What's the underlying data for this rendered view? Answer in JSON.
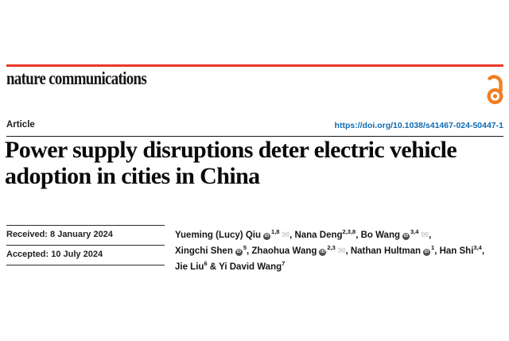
{
  "masthead": {
    "journal": "nature communications"
  },
  "icons": {
    "orcid_label": "iD",
    "email_glyph": "✉"
  },
  "colors": {
    "accent_red": "#e8392b",
    "open_access_orange": "#ef7f22",
    "link_blue": "#0f6bb2"
  },
  "article": {
    "type_label": "Article",
    "doi": "https://doi.org/10.1038/s41467-024-50447-1",
    "title": "Power supply disruptions deter electric vehicle adoption in cities in China",
    "history": [
      {
        "text": "Received: 8 January 2024"
      },
      {
        "text": "Accepted: 10 July 2024"
      }
    ],
    "authors": [
      {
        "name": "Yueming (Lucy) Qiu",
        "orcid": true,
        "sup": "1,8",
        "mail": true,
        "sep": ", "
      },
      {
        "name": "Nana Deng",
        "orcid": false,
        "sup": "2,3,8",
        "mail": false,
        "sep": ", "
      },
      {
        "name": "Bo Wang",
        "orcid": true,
        "sup": "3,4",
        "mail": true,
        "sep": ", "
      },
      {
        "name": "Xingchi Shen",
        "orcid": true,
        "sup": "5",
        "mail": false,
        "sep": ", "
      },
      {
        "name": "Zhaohua Wang",
        "orcid": true,
        "sup": "2,3",
        "mail": true,
        "sep": ", "
      },
      {
        "name": "Nathan Hultman",
        "orcid": true,
        "sup": "1",
        "mail": false,
        "sep": ", "
      },
      {
        "name": "Han Shi",
        "orcid": false,
        "sup": "3,4",
        "mail": false,
        "sep": ", "
      },
      {
        "name": "Jie Liu",
        "orcid": false,
        "sup": "6",
        "mail": false,
        "sep": " & "
      },
      {
        "name": "Yi David Wang",
        "orcid": false,
        "sup": "7",
        "mail": false,
        "sep": ""
      }
    ]
  }
}
